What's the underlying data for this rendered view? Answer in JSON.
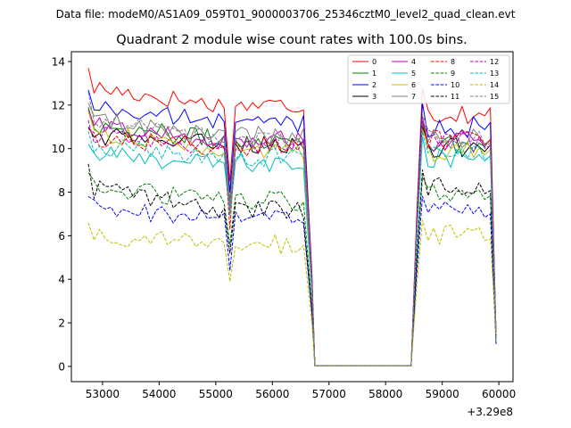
{
  "chart_data": {
    "type": "line",
    "suptitle": "Data file: modeM0/AS1A09_059T01_9000003706_25346cztM0_level2_quad_clean.evt",
    "title": "Quadrant 2 module wise count rates with 100.0s bins.",
    "xlabel": "",
    "ylabel": "",
    "x_offset_label": "+3.29e8",
    "xlim": [
      52450,
      60250
    ],
    "ylim": [
      -0.7,
      14.45
    ],
    "xticks": [
      53000,
      54000,
      55000,
      56000,
      57000,
      58000,
      59000,
      60000
    ],
    "xtick_labels": [
      "53000",
      "54000",
      "55000",
      "56000",
      "57000",
      "58000",
      "59000",
      "60000"
    ],
    "yticks": [
      0,
      2,
      4,
      6,
      8,
      10,
      12,
      14
    ],
    "ytick_labels": [
      "0",
      "2",
      "4",
      "6",
      "8",
      "10",
      "12",
      "14"
    ],
    "time_bins": {
      "segment1": [
        52750,
        56600
      ],
      "dip_at": 55250,
      "gap": [
        56750,
        58450
      ],
      "segment2": [
        58550,
        59950
      ],
      "bin_width": 100
    },
    "legend": {
      "position": "top-right",
      "columns": 4
    },
    "series": [
      {
        "name": "0",
        "color": "#ff0000",
        "dash": "solid",
        "level1": 12.0,
        "level2": 11.6,
        "dip": 8.5,
        "start": 13.7
      },
      {
        "name": "1",
        "color": "#008000",
        "dash": "solid",
        "level1": 10.4,
        "level2": 10.2,
        "dip": 7.6,
        "start": 11.9
      },
      {
        "name": "2",
        "color": "#0000ff",
        "dash": "solid",
        "level1": 11.2,
        "level2": 11.0,
        "dip": 8.0,
        "start": 12.7
      },
      {
        "name": "3",
        "color": "#000000",
        "dash": "solid",
        "level1": 10.2,
        "level2": 10.0,
        "dip": 7.2,
        "start": 11.0
      },
      {
        "name": "4",
        "color": "#bf00bf",
        "dash": "solid",
        "level1": 10.4,
        "level2": 10.3,
        "dip": 7.4,
        "start": 11.8
      },
      {
        "name": "5",
        "color": "#00bfbf",
        "dash": "solid",
        "level1": 9.3,
        "level2": 9.6,
        "dip": 7.0,
        "start": 10.2
      },
      {
        "name": "6",
        "color": "#bfbf00",
        "dash": "solid",
        "level1": 9.9,
        "level2": 9.9,
        "dip": 7.1,
        "start": 11.7
      },
      {
        "name": "7",
        "color": "#808080",
        "dash": "solid",
        "level1": 10.6,
        "level2": 10.4,
        "dip": 7.3,
        "start": 12.1
      },
      {
        "name": "8",
        "color": "#ff0000",
        "dash": "dashed",
        "level1": 10.1,
        "level2": 10.4,
        "dip": 6.3,
        "start": 10.9
      },
      {
        "name": "9",
        "color": "#008000",
        "dash": "dashed",
        "level1": 7.6,
        "level2": 7.9,
        "dip": 5.6,
        "start": 8.9
      },
      {
        "name": "10",
        "color": "#0000ff",
        "dash": "dashed",
        "level1": 6.8,
        "level2": 7.1,
        "dip": 4.4,
        "start": 7.8
      },
      {
        "name": "11",
        "color": "#000000",
        "dash": "dashed",
        "level1": 7.2,
        "level2": 8.2,
        "dip": 5.2,
        "start": 9.3
      },
      {
        "name": "12",
        "color": "#bf00bf",
        "dash": "dashed",
        "level1": 10.1,
        "level2": 10.3,
        "dip": 7.2,
        "start": 11.3
      },
      {
        "name": "13",
        "color": "#00bfbf",
        "dash": "dashed",
        "level1": 9.6,
        "level2": 9.8,
        "dip": 6.9,
        "start": 10.8
      },
      {
        "name": "14",
        "color": "#bfbf00",
        "dash": "dashed",
        "level1": 5.6,
        "level2": 6.1,
        "dip": 3.9,
        "start": 6.6
      },
      {
        "name": "15",
        "color": "#808080",
        "dash": "dashed",
        "level1": 10.4,
        "level2": 10.5,
        "dip": 7.1,
        "start": 12.6
      }
    ]
  }
}
